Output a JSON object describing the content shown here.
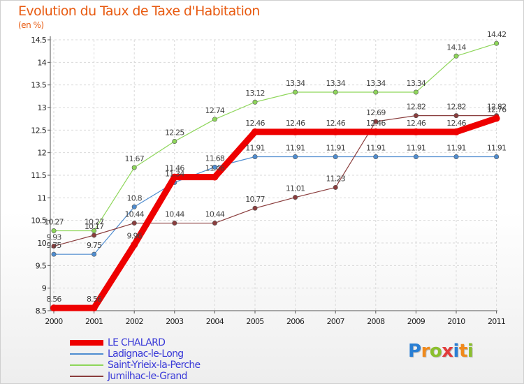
{
  "title": "Evolution du Taux de Taxe d'Habitation",
  "subtitle": "(en %)",
  "logo": {
    "text": "Proxiti",
    "letter_colors": [
      "#2a7fd4",
      "#f08a1c",
      "#8bbf2e",
      "#e23b3b",
      "#2a7fd4",
      "#f08a1c",
      "#8bbf2e"
    ]
  },
  "chart_data": {
    "type": "line",
    "title": "Evolution du Taux de Taxe d'Habitation",
    "ylabel": "(en %)",
    "xlabel": "",
    "x": [
      "2000",
      "2001",
      "2002",
      "2003",
      "2004",
      "2005",
      "2006",
      "2007",
      "2008",
      "2009",
      "2010",
      "2011"
    ],
    "ylim": [
      8.5,
      14.5
    ],
    "yticks": [
      8.5,
      9,
      9.5,
      10,
      10.5,
      11,
      11.5,
      12,
      12.5,
      13,
      13.5,
      14,
      14.5
    ],
    "ytick_labels": [
      "8.5",
      "9",
      "9.5",
      "10",
      "10.5",
      "11",
      "11.5",
      "12",
      "12.5",
      "13",
      "13.5",
      "14",
      "14.5"
    ],
    "grid": true,
    "legend_position": "bottom-left",
    "series": [
      {
        "name": "LE CHALARD",
        "color": "#ee0000",
        "values": [
          8.56,
          8.56,
          9.96,
          11.46,
          11.46,
          12.46,
          12.46,
          12.46,
          12.46,
          12.46,
          12.46,
          12.76
        ],
        "labels": [
          "8.56",
          "8.56",
          "9.96",
          "11.46",
          "11.46",
          "12.46",
          "12.46",
          "12.46",
          "12.46",
          "12.46",
          "12.46",
          "12.76"
        ]
      },
      {
        "name": "Ladignac-le-Long",
        "color": "#4f8dd0",
        "values": [
          9.75,
          9.75,
          10.8,
          11.34,
          11.68,
          11.91,
          11.91,
          11.91,
          11.91,
          11.91,
          11.91,
          11.91
        ],
        "labels": [
          "9.75",
          "9.75",
          "10.8",
          "11.34",
          "11.68",
          "11.91",
          "11.91",
          "11.91",
          "11.91",
          "11.91",
          "11.91",
          "11.91"
        ]
      },
      {
        "name": "Saint-Yrieix-la-Perche",
        "color": "#8ed65a",
        "values": [
          10.27,
          10.27,
          11.67,
          12.25,
          12.74,
          13.12,
          13.34,
          13.34,
          13.34,
          13.34,
          14.14,
          14.42
        ],
        "labels": [
          "10.27",
          "10.27",
          "11.67",
          "12.25",
          "12.74",
          "13.12",
          "13.34",
          "13.34",
          "13.34",
          "13.34",
          "14.14",
          "14.42"
        ]
      },
      {
        "name": "Jumilhac-le-Grand",
        "color": "#8a3d3d",
        "values": [
          9.93,
          10.17,
          10.44,
          10.44,
          10.44,
          10.77,
          11.01,
          11.23,
          12.69,
          12.82,
          12.82,
          12.82
        ],
        "labels": [
          "9.93",
          "10.17",
          "10.44",
          "10.44",
          "10.44",
          "10.77",
          "11.01",
          "11.23",
          "12.69",
          "12.82",
          "12.82",
          "12.82"
        ]
      }
    ]
  }
}
